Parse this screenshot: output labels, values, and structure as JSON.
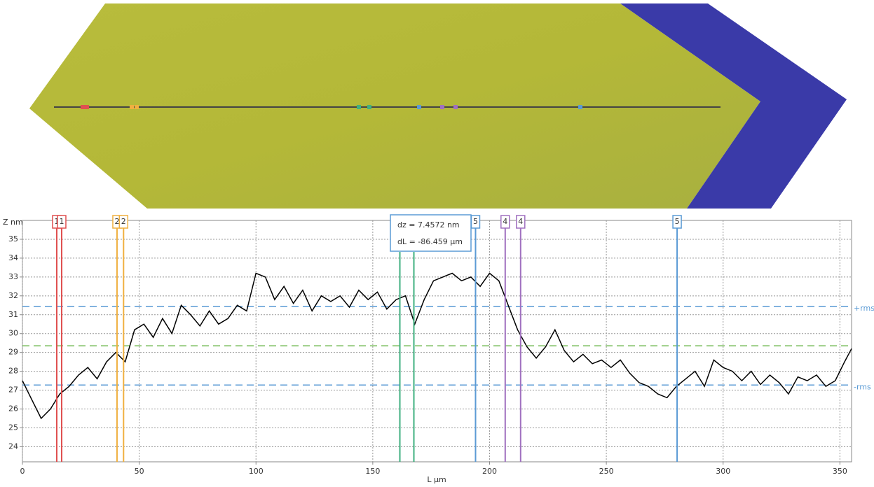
{
  "chart_data": {
    "type": "line",
    "y_axis_label": "Z nm",
    "x_axis_label": "L µm",
    "xlim": [
      0,
      355
    ],
    "ylim": [
      23.2,
      36
    ],
    "xticks": [
      0,
      50,
      100,
      150,
      200,
      250,
      300,
      350
    ],
    "yticks": [
      24,
      25,
      26,
      27,
      28,
      29,
      30,
      31,
      32,
      33,
      34,
      35
    ],
    "grid": true,
    "series": [
      {
        "color": "#000000",
        "x": [
          0,
          4,
          8,
          12,
          16,
          20,
          24,
          28,
          32,
          36,
          40,
          44,
          48,
          52,
          56,
          60,
          64,
          68,
          72,
          76,
          80,
          84,
          88,
          92,
          96,
          100,
          104,
          108,
          112,
          116,
          120,
          124,
          128,
          132,
          136,
          140,
          144,
          148,
          152,
          156,
          160,
          164,
          168,
          172,
          176,
          180,
          184,
          188,
          192,
          196,
          200,
          204,
          208,
          212,
          216,
          220,
          224,
          228,
          232,
          236,
          240,
          244,
          248,
          252,
          256,
          260,
          264,
          268,
          272,
          276,
          280,
          284,
          288,
          292,
          296,
          300,
          304,
          308,
          312,
          316,
          320,
          324,
          328,
          332,
          336,
          340,
          344,
          348,
          352,
          355
        ],
        "values": [
          27.5,
          26.5,
          25.5,
          26,
          26.8,
          27.2,
          27.8,
          28.2,
          27.6,
          28.5,
          29,
          28.5,
          30.2,
          30.5,
          29.8,
          30.8,
          30,
          31.5,
          31,
          30.4,
          31.2,
          30.5,
          30.8,
          31.5,
          31.2,
          33.2,
          33,
          31.8,
          32.5,
          31.6,
          32.3,
          31.2,
          32,
          31.7,
          32,
          31.4,
          32.3,
          31.8,
          32.2,
          31.3,
          31.8,
          32,
          30.5,
          31.8,
          32.8,
          33,
          33.2,
          32.8,
          33,
          32.5,
          33.2,
          32.8,
          31.5,
          30.2,
          29.3,
          28.7,
          29.3,
          30.2,
          29.1,
          28.5,
          28.9,
          28.4,
          28.6,
          28.2,
          28.6,
          27.9,
          27.4,
          27.2,
          26.8,
          26.6,
          27.2,
          27.6,
          28,
          27.2,
          28.6,
          28.2,
          28,
          27.5,
          28,
          27.3,
          27.8,
          27.4,
          26.8,
          27.7,
          27.5,
          27.8,
          27.2,
          27.5,
          28.5,
          29.2
        ]
      }
    ],
    "reference_lines": [
      {
        "name": "+rms",
        "value": 31.43,
        "color": "#5b9bd5"
      },
      {
        "value": 29.35,
        "color": "#70b850"
      },
      {
        "name": "-rms",
        "value": 27.27,
        "color": "#5b9bd5"
      }
    ],
    "cursors": [
      {
        "label": "1",
        "x": 14.7,
        "color": "#e05050"
      },
      {
        "label": "1",
        "x": 16.8,
        "color": "#e05050"
      },
      {
        "label": "2",
        "x": 40.5,
        "color": "#f0b040"
      },
      {
        "label": "2",
        "x": 43.3,
        "color": "#f0b040"
      },
      {
        "x": 161.6,
        "color": "#40b080"
      },
      {
        "x": 167.6,
        "color": "#40b080"
      },
      {
        "label": "5",
        "x": 194,
        "color": "#5b9bd5"
      },
      {
        "label": "4",
        "x": 206.7,
        "color": "#a070c0"
      },
      {
        "label": "4",
        "x": 213.3,
        "color": "#a070c0"
      },
      {
        "label": "5",
        "x": 280.3,
        "color": "#5b9bd5"
      }
    ],
    "annotation": {
      "dz": "dz = 7.4572 nm",
      "dL": "dL = -86.459 µm"
    }
  }
}
